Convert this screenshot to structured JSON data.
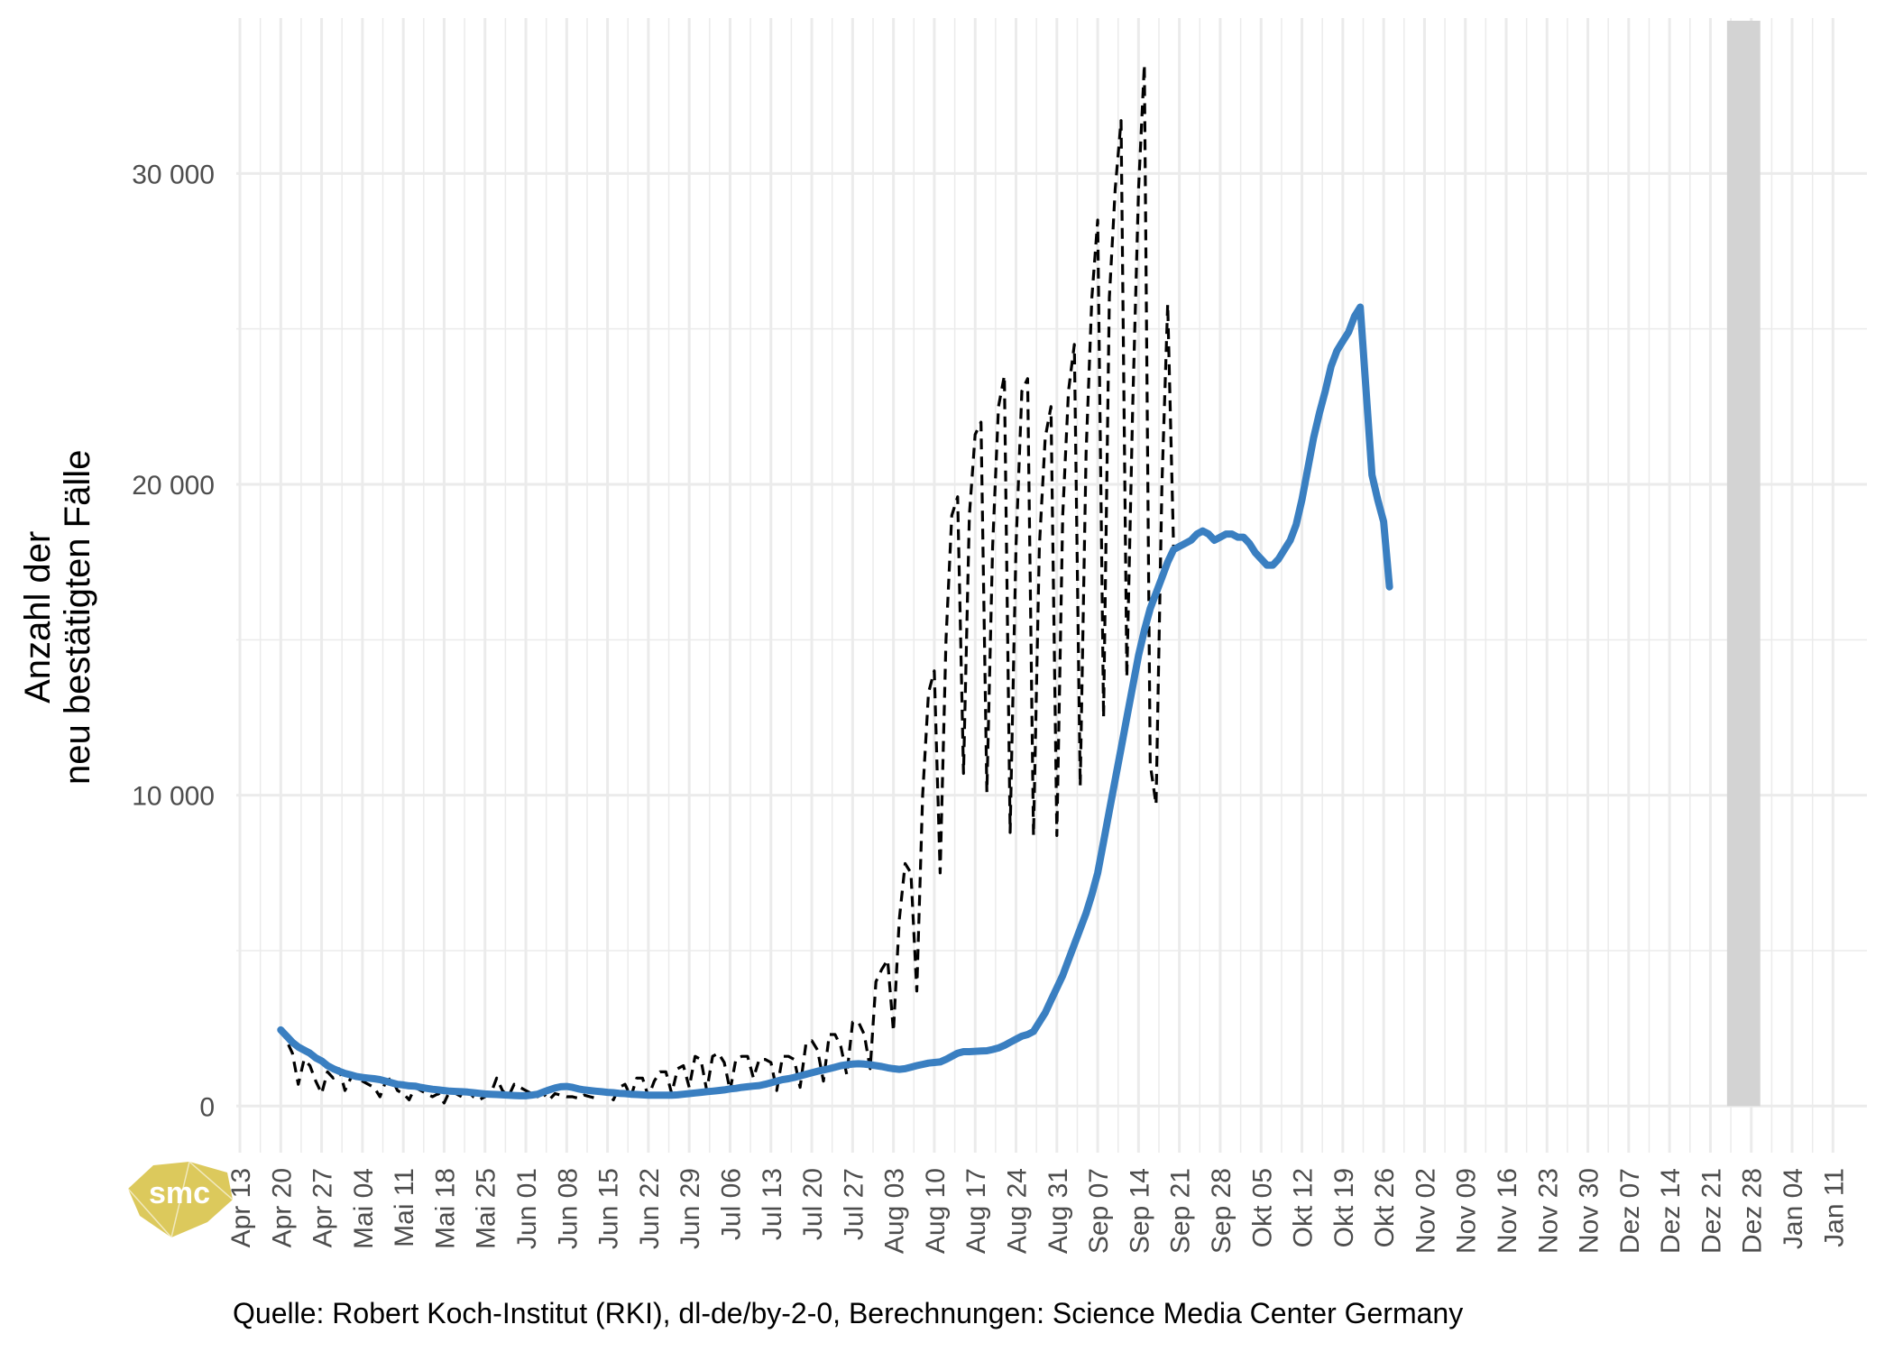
{
  "chart_data": {
    "type": "line",
    "ylabel_lines": [
      "Anzahl der",
      "neu bestätigten Fälle"
    ],
    "ylim": [
      -1500,
      35000
    ],
    "y_ticks": [
      0,
      10000,
      20000,
      30000
    ],
    "y_tick_labels": [
      "0",
      "10 000",
      "20 000",
      "30 000"
    ],
    "x_tick_labels": [
      "Apr 13",
      "Apr 20",
      "Apr 27",
      "Mai 04",
      "Mai 11",
      "Mai 18",
      "Mai 25",
      "Jun 01",
      "Jun 08",
      "Jun 15",
      "Jun 22",
      "Jun 29",
      "Jul 06",
      "Jul 13",
      "Jul 20",
      "Jul 27",
      "Aug 03",
      "Aug 10",
      "Aug 17",
      "Aug 24",
      "Aug 31",
      "Sep 07",
      "Sep 14",
      "Sep 21",
      "Sep 28",
      "Okt 05",
      "Okt 12",
      "Okt 19",
      "Okt 26",
      "Nov 02",
      "Nov 09",
      "Nov 16",
      "Nov 23",
      "Nov 30",
      "Dez 07",
      "Dez 14",
      "Dez 21",
      "Dez 28",
      "Jan 04",
      "Jan 11"
    ],
    "x_start": "2020-04-20",
    "shaded_range": [
      "2020-12-24",
      "2020-12-28"
    ],
    "grid": true,
    "series": [
      {
        "style": "dashed",
        "color": "#000000",
        "values": [
          2500,
          2100,
          1700,
          700,
          1500,
          1300,
          800,
          400,
          1100,
          900,
          1200,
          500,
          900,
          1000,
          800,
          700,
          600,
          300,
          800,
          900,
          500,
          400,
          200,
          600,
          500,
          400,
          300,
          400,
          100,
          500,
          400,
          300,
          500,
          300,
          200,
          300,
          400,
          900,
          500,
          300,
          700,
          600,
          500,
          400,
          300,
          400,
          200,
          400,
          350,
          300,
          300,
          250,
          350,
          300,
          250,
          500,
          400,
          200,
          600,
          700,
          300,
          900,
          900,
          300,
          800,
          1100,
          1100,
          400,
          1200,
          1300,
          600,
          1600,
          1500,
          500,
          1600,
          1700,
          1400,
          500,
          1500,
          1600,
          1600,
          900,
          1500,
          1500,
          1400,
          500,
          1600,
          1600,
          1500,
          600,
          2000,
          2100,
          1800,
          800,
          2300,
          2300,
          1900,
          1000,
          2700,
          2700,
          2300,
          1200,
          4000,
          4400,
          4700,
          2400,
          6000,
          7800,
          7500,
          3700,
          10000,
          13300,
          14000,
          7500,
          15000,
          19000,
          19600,
          10700,
          19000,
          21600,
          22000,
          10100,
          18000,
          22500,
          23500,
          8800,
          18000,
          23000,
          23400,
          8700,
          18000,
          21500,
          22500,
          8700,
          19000,
          23000,
          24500,
          10300,
          21000,
          26000,
          28500,
          12500,
          26000,
          29500,
          31700,
          13800,
          22500,
          29500,
          33500,
          11000,
          9700,
          20000,
          25800,
          18000
        ],
        "values_note": ""
      },
      {
        "style": "solid",
        "color": "#3a7fc1",
        "values": [
          2450,
          2250,
          2050,
          1900,
          1800,
          1700,
          1550,
          1450,
          1300,
          1200,
          1120,
          1050,
          1000,
          950,
          920,
          900,
          880,
          850,
          800,
          750,
          700,
          680,
          650,
          640,
          600,
          570,
          540,
          520,
          500,
          480,
          470,
          460,
          450,
          430,
          410,
          390,
          380,
          370,
          360,
          350,
          340,
          330,
          330,
          350,
          380,
          450,
          520,
          580,
          620,
          630,
          600,
          550,
          520,
          500,
          480,
          460,
          440,
          430,
          410,
          400,
          380,
          370,
          360,
          350,
          350,
          350,
          350,
          350,
          360,
          380,
          400,
          420,
          440,
          460,
          480,
          500,
          520,
          550,
          570,
          600,
          620,
          640,
          660,
          700,
          750,
          800,
          850,
          880,
          920,
          970,
          1020,
          1070,
          1120,
          1160,
          1200,
          1250,
          1300,
          1330,
          1350,
          1360,
          1350,
          1330,
          1300,
          1270,
          1230,
          1200,
          1180,
          1200,
          1250,
          1300,
          1340,
          1380,
          1400,
          1420,
          1500,
          1600,
          1700,
          1750,
          1750,
          1760,
          1770,
          1780,
          1820,
          1870,
          1950,
          2050,
          2150,
          2250,
          2300,
          2400,
          2700,
          3000,
          3400,
          3800,
          4200,
          4700,
          5200,
          5700,
          6200,
          6800,
          7500,
          8500,
          9500,
          10500,
          11500,
          12500,
          13500,
          14500,
          15300,
          16000,
          16500,
          17000,
          17500,
          17900,
          18000,
          18100,
          18200,
          18400,
          18500,
          18400,
          18200,
          18300,
          18400,
          18400,
          18300,
          18300,
          18100,
          17800,
          17600,
          17400,
          17400,
          17600,
          17900,
          18200,
          18700,
          19500,
          20500,
          21500,
          22300,
          23000,
          23800,
          24300,
          24600,
          24900,
          25400,
          25700,
          23000,
          20300,
          19500,
          18800,
          16700
        ]
      }
    ]
  },
  "caption": "Quelle: Robert Koch-Institut (RKI), dl-de/by-2-0, Berechnungen: Science Media Center Germany",
  "logo_text": "smc",
  "colors": {
    "line": "#3a7fc1",
    "dashed": "#000000",
    "grid": "#ebebeb",
    "shade": "#d3d3d3",
    "logo": "#d8c34a"
  }
}
